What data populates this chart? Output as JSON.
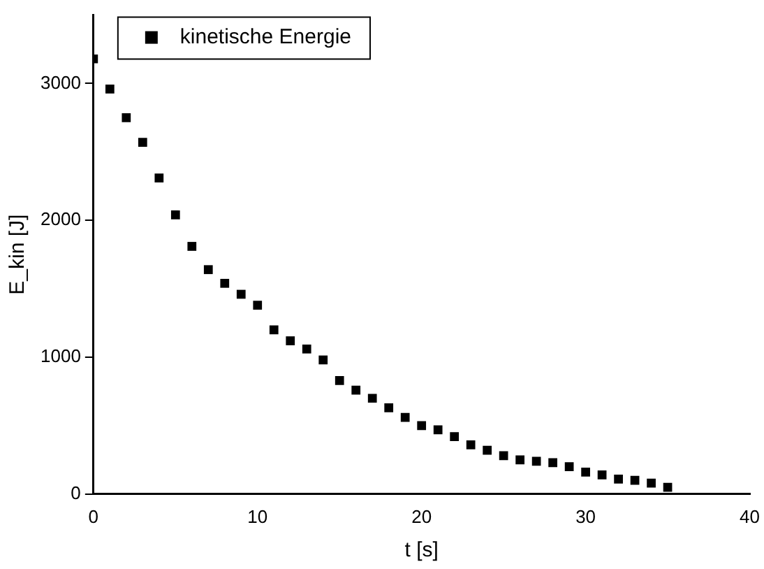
{
  "chart_data": {
    "type": "scatter",
    "xlabel": "t [s]",
    "ylabel": "E_kin [J]",
    "x": [
      0,
      1,
      2,
      3,
      4,
      5,
      6,
      7,
      8,
      9,
      10,
      11,
      12,
      13,
      14,
      15,
      16,
      17,
      18,
      19,
      20,
      21,
      22,
      23,
      24,
      25,
      26,
      27,
      28,
      29,
      30,
      31,
      32,
      33,
      34,
      35
    ],
    "series": [
      {
        "name": "kinetische Energie",
        "color": "#000000",
        "values": [
          3180,
          2960,
          2750,
          2570,
          2310,
          2040,
          1810,
          1640,
          1540,
          1460,
          1380,
          1200,
          1120,
          1060,
          980,
          830,
          760,
          700,
          630,
          560,
          500,
          470,
          420,
          360,
          320,
          280,
          250,
          240,
          230,
          200,
          160,
          140,
          110,
          100,
          80,
          50
        ]
      }
    ],
    "xlim": [
      0,
      40
    ],
    "xticks": [
      0,
      10,
      20,
      30,
      40
    ],
    "ylim": [
      0,
      3500
    ],
    "yticks": [
      0,
      1000,
      2000,
      3000
    ],
    "grid": false,
    "legend": "top left",
    "marker": "square"
  }
}
